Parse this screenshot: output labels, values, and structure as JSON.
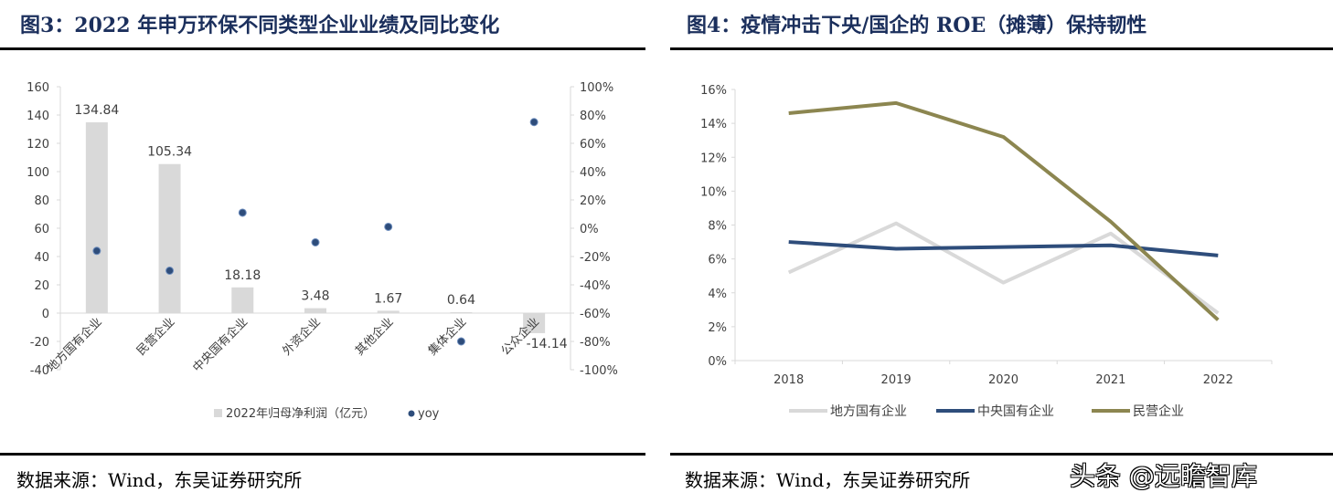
{
  "left": {
    "title": "图3：2022 年申万环保不同类型企业业绩及同比变化",
    "source": "数据来源：Wind，东吴证券研究所"
  },
  "right": {
    "title": "图4：疫情冲击下央/国企的 ROE（摊薄）保持韧性",
    "source": "数据来源：Wind，东吴证券研究所"
  },
  "watermark": "头条 @远瞻智库",
  "chart_data": [
    {
      "type": "bar",
      "categories": [
        "地方国有企业",
        "民营企业",
        "中央国有企业",
        "外资企业",
        "其他企业",
        "集体企业",
        "公众企业"
      ],
      "series": [
        {
          "name": "2022年归母净利润（亿元）",
          "type": "bar",
          "axis": "left",
          "values": [
            134.84,
            105.34,
            18.18,
            3.48,
            1.67,
            0.64,
            -14.14
          ],
          "labels": [
            "134.84",
            "105.34",
            "18.18",
            "3.48",
            "1.67",
            "0.64",
            "-14.14"
          ],
          "color": "#d9d9d9"
        },
        {
          "name": "yoy",
          "type": "scatter",
          "axis": "right",
          "values": [
            -16,
            -30,
            11,
            -10,
            1,
            -80,
            75
          ],
          "color": "#2e4d7b"
        }
      ],
      "ylim": [
        -40,
        160
      ],
      "yticks": [
        "-40",
        "-20",
        "0",
        "20",
        "40",
        "60",
        "80",
        "100",
        "120",
        "140",
        "160"
      ],
      "y2lim": [
        -100,
        100
      ],
      "y2ticks": [
        "-100%",
        "-80%",
        "-60%",
        "-40%",
        "-20%",
        "0%",
        "20%",
        "40%",
        "60%",
        "80%",
        "100%"
      ],
      "legend": "bottom"
    },
    {
      "type": "line",
      "x": [
        "2018",
        "2019",
        "2020",
        "2021",
        "2022"
      ],
      "series": [
        {
          "name": "地方国有企业",
          "values": [
            5.2,
            8.1,
            4.6,
            7.5,
            2.8
          ],
          "color": "#d9d9d9"
        },
        {
          "name": "中央国有企业",
          "values": [
            7.0,
            6.6,
            6.7,
            6.8,
            6.2
          ],
          "color": "#2e4d7b"
        },
        {
          "name": "民营企业",
          "values": [
            14.6,
            15.2,
            13.2,
            8.2,
            2.4
          ],
          "color": "#8c8650"
        }
      ],
      "ylim": [
        0,
        16
      ],
      "yticks": [
        "0%",
        "2%",
        "4%",
        "6%",
        "8%",
        "10%",
        "12%",
        "14%",
        "16%"
      ],
      "legend": "bottom"
    }
  ]
}
